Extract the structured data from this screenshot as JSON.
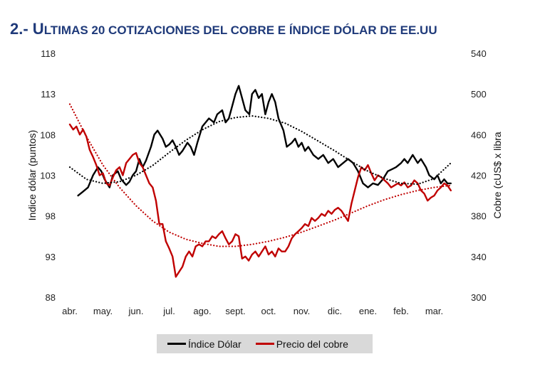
{
  "title": {
    "prefix": "2.- U",
    "text": "ltimas 20 cotizaciones del cobre e índice dólar de EE.UU"
  },
  "colors": {
    "title": "#1f3a7a",
    "dollar": "#000000",
    "copper": "#c00000",
    "legend_bg": "#d9d9d9"
  },
  "chart_data": {
    "type": "line",
    "x_ticks": [
      "abr.",
      "may.",
      "jun.",
      "jul.",
      "ago.",
      "sept.",
      "oct.",
      "nov.",
      "dic.",
      "ene.",
      "feb.",
      "mar."
    ],
    "y_left": {
      "label": "Indice dólar (puntos)",
      "ticks": [
        88,
        93,
        98,
        103,
        108,
        113,
        118
      ],
      "range": [
        88,
        118
      ]
    },
    "y_right": {
      "label": "Cobre (cUS$ x libra",
      "ticks": [
        300,
        340,
        380,
        420,
        460,
        500,
        540
      ],
      "range": [
        300,
        540
      ]
    },
    "grid": false,
    "legend_position": "bottom",
    "series": [
      {
        "name": "Índice Dólar",
        "axis": "left",
        "color": "#000000",
        "style": "solid",
        "x": [
          0.25,
          0.4,
          0.55,
          0.7,
          0.85,
          0.95,
          1.05,
          1.2,
          1.3,
          1.45,
          1.55,
          1.7,
          1.8,
          1.9,
          2.0,
          2.1,
          2.2,
          2.3,
          2.45,
          2.55,
          2.65,
          2.8,
          2.9,
          3.0,
          3.1,
          3.2,
          3.3,
          3.4,
          3.55,
          3.65,
          3.75,
          3.85,
          4.0,
          4.1,
          4.2,
          4.35,
          4.45,
          4.6,
          4.7,
          4.8,
          4.9,
          5.0,
          5.1,
          5.2,
          5.3,
          5.42,
          5.5,
          5.6,
          5.7,
          5.8,
          5.9,
          6.0,
          6.1,
          6.2,
          6.3,
          6.45,
          6.55,
          6.7,
          6.8,
          6.9,
          7.0,
          7.1,
          7.2,
          7.35,
          7.5,
          7.65,
          7.8,
          7.95,
          8.1,
          8.25,
          8.4,
          8.55,
          8.7,
          8.85,
          9.0,
          9.15,
          9.3,
          9.45,
          9.6,
          9.75,
          9.85,
          10.0,
          10.1,
          10.2,
          10.35,
          10.5,
          10.6,
          10.75,
          10.85,
          11.0,
          11.1,
          11.2,
          11.3,
          11.4,
          11.5
        ],
        "values": [
          100.5,
          101.0,
          101.5,
          103.0,
          104.0,
          103.5,
          102.5,
          101.5,
          103.0,
          103.5,
          102.5,
          101.8,
          102.2,
          103.0,
          103.5,
          105.0,
          104.0,
          104.8,
          106.5,
          108.0,
          108.5,
          107.5,
          106.5,
          106.8,
          107.3,
          106.5,
          105.5,
          106.0,
          107.0,
          106.5,
          105.5,
          107.0,
          109.0,
          109.5,
          110.0,
          109.5,
          110.5,
          111.0,
          109.5,
          110.0,
          111.5,
          113.0,
          114.0,
          112.5,
          111.0,
          110.5,
          113.0,
          113.5,
          112.5,
          113.0,
          110.5,
          112.0,
          113.0,
          112.0,
          110.0,
          108.5,
          106.5,
          107.0,
          107.5,
          106.5,
          107.0,
          106.0,
          106.5,
          105.5,
          105.0,
          105.5,
          104.5,
          105.0,
          104.0,
          104.5,
          105.0,
          104.5,
          103.5,
          102.0,
          101.5,
          102.0,
          101.8,
          102.5,
          103.5,
          103.8,
          104.0,
          104.5,
          105.0,
          104.5,
          105.5,
          104.5,
          105.0,
          104.0,
          103.0,
          102.5,
          103.0,
          102.0,
          102.5,
          102.0,
          102.0
        ]
      },
      {
        "name": "Precio del cobre",
        "axis": "right",
        "color": "#c00000",
        "style": "solid",
        "x": [
          0.0,
          0.1,
          0.2,
          0.3,
          0.4,
          0.5,
          0.6,
          0.7,
          0.8,
          0.9,
          1.0,
          1.1,
          1.2,
          1.3,
          1.4,
          1.5,
          1.6,
          1.7,
          1.8,
          1.9,
          2.0,
          2.1,
          2.2,
          2.3,
          2.4,
          2.5,
          2.6,
          2.7,
          2.8,
          2.9,
          3.0,
          3.1,
          3.2,
          3.3,
          3.4,
          3.5,
          3.6,
          3.7,
          3.8,
          3.9,
          4.0,
          4.1,
          4.2,
          4.3,
          4.4,
          4.5,
          4.6,
          4.7,
          4.8,
          4.9,
          5.0,
          5.1,
          5.2,
          5.3,
          5.4,
          5.5,
          5.6,
          5.7,
          5.8,
          5.9,
          6.0,
          6.1,
          6.2,
          6.3,
          6.4,
          6.5,
          6.6,
          6.7,
          6.8,
          6.9,
          7.0,
          7.1,
          7.2,
          7.3,
          7.4,
          7.5,
          7.6,
          7.7,
          7.8,
          7.9,
          8.0,
          8.1,
          8.2,
          8.3,
          8.4,
          8.5,
          8.6,
          8.7,
          8.8,
          8.9,
          9.0,
          9.1,
          9.2,
          9.3,
          9.4,
          9.5,
          9.6,
          9.7,
          9.8,
          9.9,
          10.0,
          10.1,
          10.2,
          10.3,
          10.4,
          10.5,
          10.6,
          10.7,
          10.8,
          10.9,
          11.0,
          11.1,
          11.2,
          11.3,
          11.4,
          11.5
        ],
        "values": [
          470,
          465,
          468,
          460,
          465,
          458,
          445,
          438,
          430,
          420,
          422,
          412,
          410,
          418,
          425,
          428,
          420,
          432,
          436,
          440,
          442,
          432,
          428,
          420,
          412,
          408,
          395,
          372,
          372,
          355,
          348,
          340,
          320,
          325,
          330,
          340,
          345,
          340,
          350,
          352,
          350,
          355,
          355,
          360,
          358,
          362,
          365,
          358,
          352,
          355,
          362,
          360,
          338,
          340,
          336,
          342,
          345,
          340,
          345,
          350,
          342,
          345,
          340,
          348,
          345,
          345,
          350,
          358,
          362,
          365,
          368,
          372,
          370,
          378,
          375,
          378,
          382,
          380,
          385,
          382,
          386,
          388,
          385,
          380,
          375,
          392,
          405,
          418,
          428,
          425,
          430,
          422,
          415,
          420,
          418,
          415,
          412,
          408,
          410,
          412,
          410,
          413,
          408,
          410,
          415,
          412,
          405,
          402,
          395,
          398,
          400,
          405,
          408,
          412,
          410,
          405
        ]
      },
      {
        "name": "",
        "axis": "left",
        "color": "#000000",
        "style": "dotted",
        "x": [
          0.0,
          0.5,
          1.0,
          1.5,
          2.0,
          2.5,
          3.0,
          3.5,
          4.0,
          4.5,
          5.0,
          5.5,
          6.0,
          6.5,
          7.0,
          7.5,
          8.0,
          8.5,
          9.0,
          9.5,
          10.0,
          10.5,
          11.0,
          11.5
        ],
        "values": [
          104.0,
          102.5,
          102.0,
          102.2,
          103.0,
          104.2,
          105.8,
          107.3,
          108.6,
          109.6,
          110.1,
          110.3,
          110.0,
          109.4,
          108.4,
          107.2,
          106.0,
          104.7,
          103.5,
          102.6,
          102.0,
          101.9,
          102.6,
          104.5
        ]
      },
      {
        "name": "",
        "axis": "right",
        "color": "#c00000",
        "style": "dotted",
        "x": [
          0.0,
          0.5,
          1.0,
          1.5,
          2.0,
          2.5,
          3.0,
          3.5,
          4.0,
          4.5,
          5.0,
          5.5,
          6.0,
          6.5,
          7.0,
          7.5,
          8.0,
          8.5,
          9.0,
          9.5,
          10.0,
          10.5,
          11.0,
          11.5
        ],
        "values": [
          490,
          458,
          430,
          408,
          390,
          375,
          364,
          357,
          353,
          350,
          350,
          352,
          355,
          359,
          364,
          370,
          376,
          383,
          390,
          396,
          401,
          405,
          408,
          410
        ]
      }
    ]
  },
  "legend": {
    "dollar_label": "Índice Dólar",
    "copper_label": "Precio del cobre"
  }
}
